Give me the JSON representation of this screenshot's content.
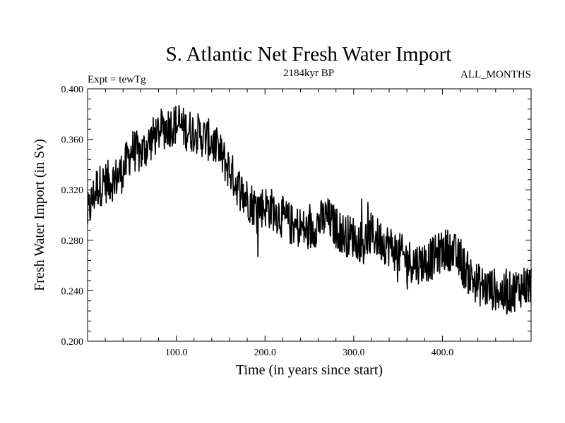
{
  "chart_data": {
    "type": "line",
    "title": "S. Atlantic Net Fresh Water Import",
    "subtitle_left": "Expt = tewTg",
    "subtitle_center": "2184kyr BP",
    "subtitle_right": "ALL_MONTHS",
    "xlabel": "Time (in years since start)",
    "ylabel": "Fresh Water Import (in Sv)",
    "xlim": [
      0,
      500
    ],
    "ylim": [
      0.2,
      0.4
    ],
    "xticks": [
      100,
      200,
      300,
      400
    ],
    "xtick_labels": [
      "100.0",
      "200.0",
      "300.0",
      "400.0"
    ],
    "yticks": [
      0.2,
      0.24,
      0.28,
      0.32,
      0.36,
      0.4
    ],
    "ytick_labels": [
      "0.200",
      "0.240",
      "0.280",
      "0.320",
      "0.360",
      "0.400"
    ],
    "series": [
      {
        "name": "S. Atlantic net fresh water import",
        "x": [
          0,
          10,
          20,
          30,
          40,
          50,
          60,
          70,
          80,
          90,
          100,
          110,
          120,
          130,
          140,
          150,
          160,
          170,
          180,
          190,
          200,
          210,
          220,
          230,
          240,
          250,
          260,
          270,
          280,
          290,
          300,
          310,
          320,
          330,
          340,
          350,
          360,
          370,
          380,
          390,
          400,
          410,
          420,
          430,
          440,
          450,
          460,
          470,
          480,
          490,
          500
        ],
        "y": [
          0.3,
          0.322,
          0.326,
          0.328,
          0.335,
          0.352,
          0.348,
          0.358,
          0.366,
          0.37,
          0.372,
          0.368,
          0.366,
          0.362,
          0.358,
          0.348,
          0.336,
          0.322,
          0.313,
          0.306,
          0.307,
          0.304,
          0.298,
          0.292,
          0.29,
          0.286,
          0.294,
          0.298,
          0.29,
          0.284,
          0.283,
          0.278,
          0.285,
          0.28,
          0.276,
          0.27,
          0.265,
          0.262,
          0.263,
          0.266,
          0.272,
          0.273,
          0.263,
          0.253,
          0.245,
          0.242,
          0.241,
          0.236,
          0.24,
          0.244,
          0.245
        ],
        "color": "#000000"
      }
    ]
  }
}
